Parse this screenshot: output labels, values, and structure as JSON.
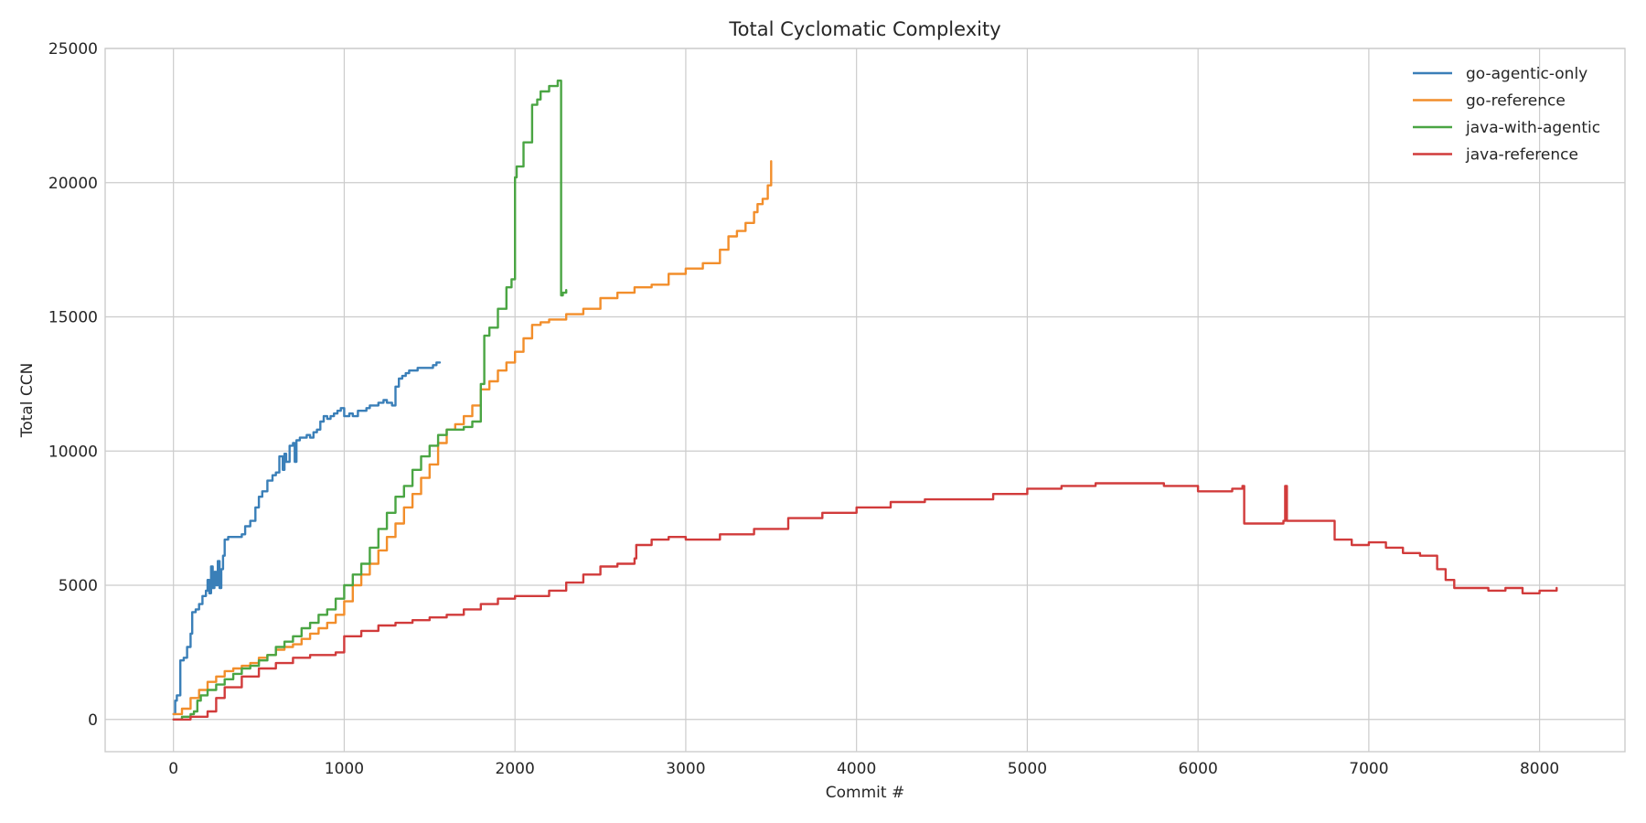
{
  "chart_data": {
    "type": "line",
    "title": "Total Cyclomatic Complexity",
    "xlabel": "Commit #",
    "ylabel": "Total CCN",
    "xlim": [
      -400,
      8500
    ],
    "ylim": [
      -1200,
      25000
    ],
    "xticks": [
      0,
      1000,
      2000,
      3000,
      4000,
      5000,
      6000,
      7000,
      8000
    ],
    "yticks": [
      0,
      5000,
      10000,
      15000,
      20000,
      25000
    ],
    "grid": true,
    "legend_position": "top-right",
    "series": [
      {
        "name": "go-agentic-only",
        "color": "#3a7fb8",
        "x": [
          0,
          10,
          20,
          40,
          60,
          80,
          100,
          110,
          130,
          150,
          170,
          190,
          200,
          210,
          220,
          230,
          240,
          250,
          260,
          270,
          280,
          290,
          300,
          320,
          350,
          400,
          420,
          450,
          480,
          500,
          520,
          550,
          580,
          600,
          620,
          640,
          650,
          660,
          680,
          700,
          710,
          720,
          740,
          760,
          780,
          800,
          820,
          840,
          860,
          880,
          900,
          920,
          940,
          960,
          980,
          1000,
          1010,
          1030,
          1050,
          1080,
          1100,
          1130,
          1150,
          1180,
          1200,
          1230,
          1250,
          1280,
          1300,
          1320,
          1340,
          1360,
          1380,
          1400,
          1430,
          1460,
          1490,
          1520,
          1540,
          1560
        ],
        "y": [
          200,
          700,
          900,
          2200,
          2300,
          2700,
          3200,
          4000,
          4100,
          4300,
          4600,
          4800,
          5200,
          4700,
          5700,
          4900,
          5500,
          5000,
          5900,
          4900,
          5600,
          6100,
          6700,
          6800,
          6800,
          6900,
          7200,
          7400,
          7900,
          8300,
          8500,
          8900,
          9100,
          9200,
          9800,
          9300,
          9900,
          9600,
          10200,
          10300,
          9600,
          10400,
          10500,
          10500,
          10600,
          10500,
          10700,
          10800,
          11100,
          11300,
          11200,
          11300,
          11400,
          11500,
          11600,
          11300,
          11300,
          11400,
          11300,
          11500,
          11500,
          11600,
          11700,
          11700,
          11800,
          11900,
          11800,
          11700,
          12400,
          12700,
          12800,
          12900,
          13000,
          13000,
          13100,
          13100,
          13100,
          13200,
          13300,
          13300
        ]
      },
      {
        "name": "go-reference",
        "color": "#f28e2b",
        "x": [
          0,
          50,
          100,
          150,
          200,
          250,
          300,
          350,
          400,
          450,
          500,
          550,
          600,
          650,
          700,
          750,
          800,
          850,
          900,
          950,
          1000,
          1050,
          1100,
          1150,
          1200,
          1250,
          1300,
          1350,
          1400,
          1450,
          1500,
          1550,
          1600,
          1650,
          1700,
          1750,
          1800,
          1850,
          1900,
          1950,
          2000,
          2050,
          2100,
          2150,
          2200,
          2300,
          2400,
          2500,
          2600,
          2700,
          2800,
          2900,
          3000,
          3100,
          3200,
          3250,
          3300,
          3350,
          3400,
          3420,
          3450,
          3480,
          3500
        ],
        "y": [
          200,
          400,
          800,
          1100,
          1400,
          1600,
          1800,
          1900,
          2000,
          2100,
          2300,
          2400,
          2600,
          2700,
          2800,
          3000,
          3200,
          3400,
          3600,
          3900,
          4400,
          5000,
          5400,
          5800,
          6300,
          6800,
          7300,
          7900,
          8400,
          9000,
          9500,
          10300,
          10800,
          11000,
          11300,
          11700,
          12300,
          12600,
          13000,
          13300,
          13700,
          14200,
          14700,
          14800,
          14900,
          15100,
          15300,
          15700,
          15900,
          16100,
          16200,
          16600,
          16800,
          17000,
          17500,
          18000,
          18200,
          18500,
          18900,
          19200,
          19400,
          19900,
          20800
        ]
      },
      {
        "name": "java-with-agentic",
        "color": "#4aa543",
        "x": [
          0,
          50,
          100,
          120,
          140,
          160,
          200,
          250,
          300,
          350,
          400,
          450,
          500,
          550,
          600,
          650,
          700,
          750,
          800,
          850,
          900,
          950,
          1000,
          1050,
          1100,
          1150,
          1200,
          1250,
          1300,
          1350,
          1400,
          1450,
          1500,
          1550,
          1600,
          1650,
          1700,
          1750,
          1800,
          1820,
          1850,
          1900,
          1950,
          1980,
          2000,
          2010,
          2050,
          2100,
          2130,
          2150,
          2200,
          2250,
          2270,
          2280,
          2300
        ],
        "y": [
          0,
          100,
          200,
          300,
          700,
          900,
          1100,
          1300,
          1500,
          1700,
          1900,
          2000,
          2200,
          2400,
          2700,
          2900,
          3100,
          3400,
          3600,
          3900,
          4100,
          4500,
          5000,
          5400,
          5800,
          6400,
          7100,
          7700,
          8300,
          8700,
          9300,
          9800,
          10200,
          10600,
          10800,
          10800,
          10900,
          11100,
          12500,
          14300,
          14600,
          15300,
          16100,
          16400,
          20200,
          20600,
          21500,
          22900,
          23100,
          23400,
          23600,
          23800,
          15800,
          15900,
          16000
        ]
      },
      {
        "name": "java-reference",
        "color": "#d13b3b",
        "x": [
          0,
          100,
          200,
          250,
          300,
          400,
          500,
          600,
          700,
          800,
          900,
          950,
          1000,
          1100,
          1200,
          1300,
          1400,
          1500,
          1600,
          1700,
          1800,
          1900,
          2000,
          2100,
          2200,
          2300,
          2400,
          2500,
          2600,
          2700,
          2710,
          2800,
          2900,
          3000,
          3200,
          3400,
          3600,
          3800,
          4000,
          4200,
          4400,
          4600,
          4800,
          5000,
          5200,
          5400,
          5600,
          5800,
          6000,
          6200,
          6260,
          6270,
          6400,
          6500,
          6510,
          6520,
          6600,
          6700,
          6800,
          6900,
          7000,
          7100,
          7200,
          7300,
          7400,
          7450,
          7500,
          7600,
          7700,
          7800,
          7900,
          8000,
          8100
        ],
        "y": [
          0,
          100,
          300,
          800,
          1200,
          1600,
          1900,
          2100,
          2300,
          2400,
          2400,
          2500,
          3100,
          3300,
          3500,
          3600,
          3700,
          3800,
          3900,
          4100,
          4300,
          4500,
          4600,
          4600,
          4800,
          5100,
          5400,
          5700,
          5800,
          6000,
          6500,
          6700,
          6800,
          6700,
          6900,
          7100,
          7500,
          7700,
          7900,
          8100,
          8200,
          8200,
          8400,
          8600,
          8700,
          8800,
          8800,
          8700,
          8500,
          8600,
          8700,
          7300,
          7300,
          7400,
          8700,
          7400,
          7400,
          7400,
          6700,
          6500,
          6600,
          6400,
          6200,
          6100,
          5600,
          5200,
          4900,
          4900,
          4800,
          4900,
          4700,
          4800,
          4900
        ]
      }
    ]
  }
}
